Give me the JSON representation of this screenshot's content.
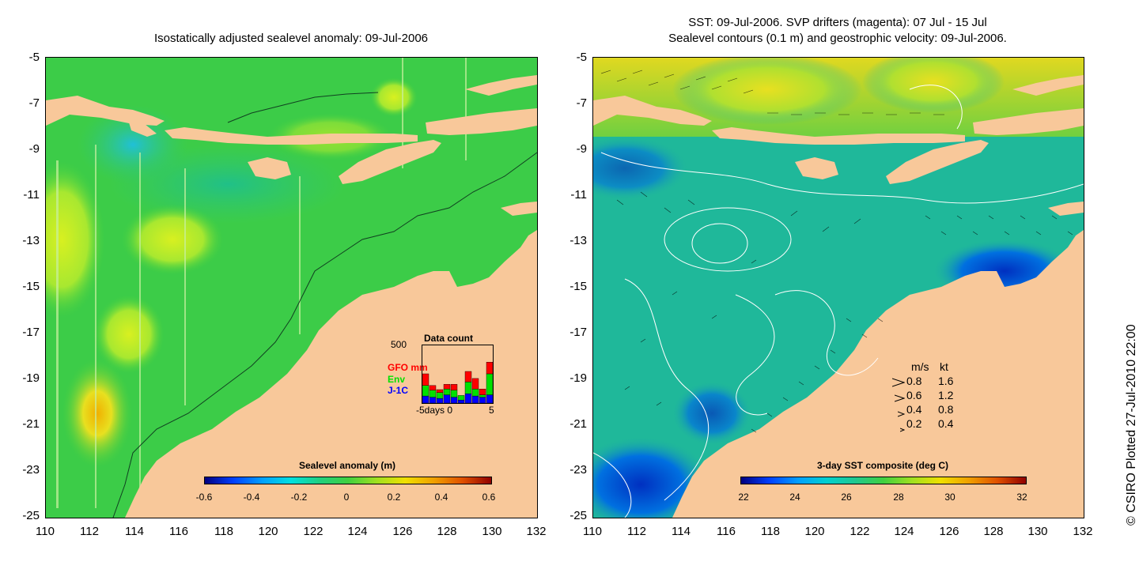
{
  "left_map": {
    "title": "Isostatically adjusted sealevel anomaly: 09-Jul-2006",
    "y_ticks": [
      "-5",
      "-7",
      "-9",
      "-11",
      "-13",
      "-15",
      "-17",
      "-19",
      "-21",
      "-23",
      "-25"
    ],
    "x_ticks": [
      "110",
      "112",
      "114",
      "116",
      "118",
      "120",
      "122",
      "124",
      "126",
      "128",
      "130",
      "132"
    ],
    "colorbar": {
      "title": "Sealevel anomaly (m)",
      "ticks": [
        "-0.6",
        "-0.4",
        "-0.2",
        "0",
        "0.2",
        "0.4",
        "0.6"
      ]
    },
    "data_count": {
      "title": "Data count",
      "ymax": "500",
      "legend": [
        {
          "label": "GFO mm",
          "color": "#ff0000"
        },
        {
          "label": "Env",
          "color": "#00e000"
        },
        {
          "label": "J-1C",
          "color": "#0000ff"
        }
      ],
      "x_label": "-5days 0",
      "x_end": "5",
      "bars": [
        {
          "blue": 0.12,
          "green": 0.18,
          "red": 0.2
        },
        {
          "blue": 0.1,
          "green": 0.12,
          "red": 0.08
        },
        {
          "blue": 0.08,
          "green": 0.1,
          "red": 0.05
        },
        {
          "blue": 0.14,
          "green": 0.1,
          "red": 0.08
        },
        {
          "blue": 0.1,
          "green": 0.12,
          "red": 0.1
        },
        {
          "blue": 0.05,
          "green": 0.08,
          "red": 0.0
        },
        {
          "blue": 0.16,
          "green": 0.2,
          "red": 0.18
        },
        {
          "blue": 0.12,
          "green": 0.12,
          "red": 0.18
        },
        {
          "blue": 0.1,
          "green": 0.04,
          "red": 0.1
        },
        {
          "blue": 0.14,
          "green": 0.36,
          "red": 0.2
        }
      ]
    }
  },
  "right_map": {
    "title_line1": "SST: 09-Jul-2006. SVP drifters (magenta): 07 Jul - 15 Jul",
    "title_line2": "Sealevel contours (0.1 m) and geostrophic velocity: 09-Jul-2006.",
    "y_ticks": [
      "-5",
      "-7",
      "-9",
      "-11",
      "-13",
      "-15",
      "-17",
      "-19",
      "-21",
      "-23",
      "-25"
    ],
    "x_ticks": [
      "110",
      "112",
      "114",
      "116",
      "118",
      "120",
      "122",
      "124",
      "126",
      "128",
      "130",
      "132"
    ],
    "colorbar": {
      "title": "3-day SST composite (deg C)",
      "ticks": [
        "22",
        "24",
        "26",
        "28",
        "30",
        "32"
      ]
    },
    "velocity_legend": {
      "header_ms": "m/s",
      "header_kt": "kt",
      "rows": [
        {
          "ms": "0.8",
          "kt": "1.6"
        },
        {
          "ms": "0.6",
          "kt": "1.2"
        },
        {
          "ms": "0.4",
          "kt": "0.8"
        },
        {
          "ms": "0.2",
          "kt": "0.4"
        }
      ]
    }
  },
  "credit": "© CSIRO Plotted 27-Jul-2010 22:00",
  "colors": {
    "land": "#f8c89a",
    "sla_base": "#22cc44",
    "sst_base": "#22b890"
  }
}
